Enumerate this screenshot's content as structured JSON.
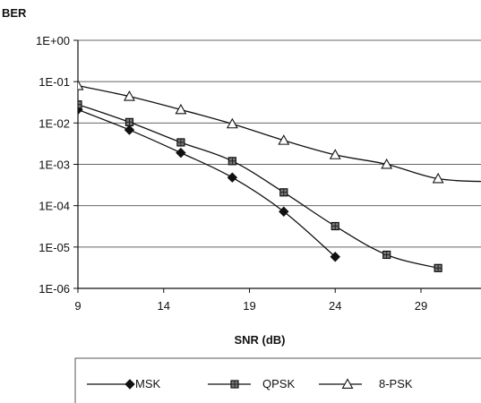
{
  "chart_data": {
    "type": "line",
    "title": "",
    "xlabel": "SNR (dB)",
    "ylabel": "BER",
    "y_scale": "log",
    "xlim": [
      9,
      32.5
    ],
    "ylim": [
      1e-06,
      1
    ],
    "x_ticks": [
      {
        "value": 9,
        "label": "9"
      },
      {
        "value": 14,
        "label": "14"
      },
      {
        "value": 19,
        "label": "19"
      },
      {
        "value": 24,
        "label": "24"
      },
      {
        "value": 29,
        "label": "29"
      }
    ],
    "y_ticks": [
      {
        "value": 1,
        "label": "1E+00"
      },
      {
        "value": 0.1,
        "label": "1E-01"
      },
      {
        "value": 0.01,
        "label": "1E-02"
      },
      {
        "value": 0.001,
        "label": "1E-03"
      },
      {
        "value": 0.0001,
        "label": "1E-04"
      },
      {
        "value": 1e-05,
        "label": "1E-05"
      },
      {
        "value": 1e-06,
        "label": "1E-06"
      }
    ],
    "grid": "horizontal",
    "legend_position": "bottom",
    "series": [
      {
        "name": "MSK",
        "marker": "diamond",
        "x": [
          9,
          12,
          15,
          18,
          21,
          24
        ],
        "y": [
          0.021,
          0.0068,
          0.0019,
          0.00048,
          7.2e-05,
          5.8e-06
        ]
      },
      {
        "name": "QPSK",
        "marker": "square",
        "x": [
          9,
          12,
          15,
          18,
          21,
          24,
          27,
          30
        ],
        "y": [
          0.028,
          0.0105,
          0.0034,
          0.0012,
          0.00021,
          3.2e-05,
          6.5e-06,
          3.1e-06
        ]
      },
      {
        "name": "8-PSK",
        "marker": "triangle",
        "x": [
          9,
          12,
          15,
          18,
          21,
          24,
          27,
          30,
          33
        ],
        "y": [
          0.08,
          0.044,
          0.021,
          0.0095,
          0.0038,
          0.0017,
          0.001,
          0.00045,
          0.00038
        ]
      }
    ]
  }
}
